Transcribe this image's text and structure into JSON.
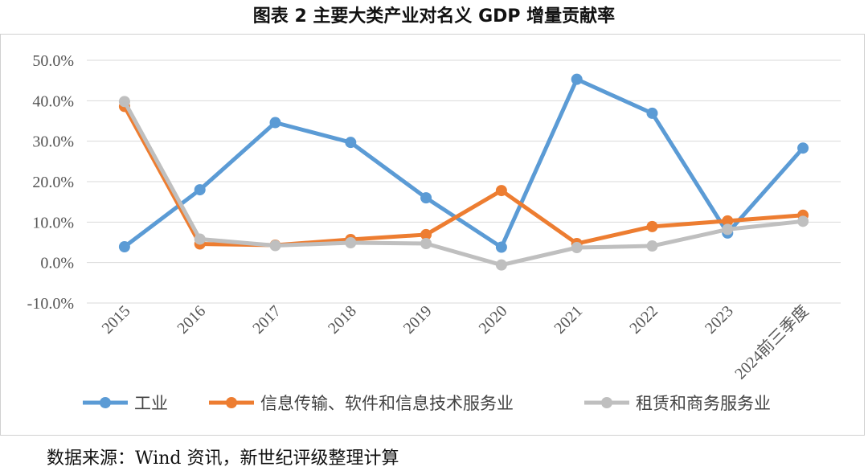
{
  "title": "图表 2 主要大类产业对名义 GDP 增量贡献率",
  "source": "数据来源：Wind 资讯，新世纪评级整理计算",
  "chart_data": {
    "type": "line",
    "title": "图表 2 主要大类产业对名义 GDP 增量贡献率",
    "categories": [
      "2015",
      "2016",
      "2017",
      "2018",
      "2019",
      "2020",
      "2021",
      "2022",
      "2023",
      "2024前三季度"
    ],
    "ylim": [
      -10,
      50
    ],
    "yticks": [
      -10,
      0,
      10,
      20,
      30,
      40,
      50
    ],
    "ytick_labels": [
      "-10.0%",
      "0.0%",
      "10.0%",
      "20.0%",
      "30.0%",
      "40.0%",
      "50.0%"
    ],
    "grid": true,
    "legend": "bottom",
    "series": [
      {
        "name": "工业",
        "color": "#5B9BD5",
        "values": [
          3.9,
          18.0,
          34.6,
          29.7,
          16.0,
          3.8,
          45.3,
          36.9,
          7.3,
          28.3
        ]
      },
      {
        "name": "信息传输、软件和信息技术服务业",
        "color": "#ED7D31",
        "values": [
          38.6,
          4.6,
          4.3,
          5.7,
          6.9,
          17.8,
          4.7,
          8.9,
          10.3,
          11.7
        ]
      },
      {
        "name": "租赁和商务服务业",
        "color": "#BFBFBF",
        "values": [
          39.8,
          5.8,
          4.2,
          4.9,
          4.7,
          -0.6,
          3.7,
          4.1,
          8.2,
          10.2
        ]
      }
    ]
  }
}
